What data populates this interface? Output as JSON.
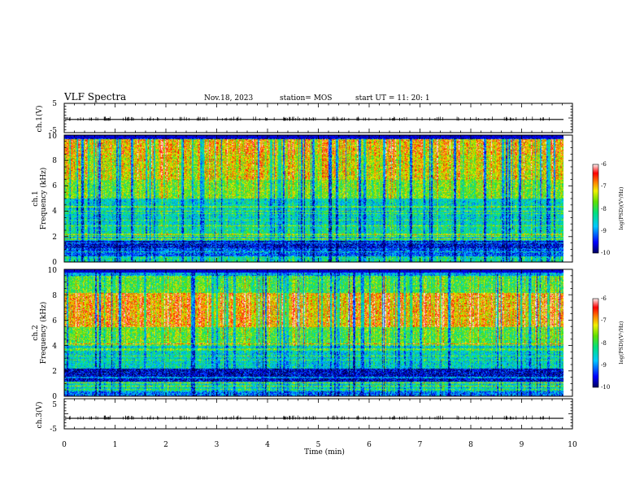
{
  "header": {
    "title": "VLF Spectra",
    "date": "Nov.18, 2023",
    "station": "station= MOS",
    "start": "start  UT =   11: 20: 1"
  },
  "chart_data": [
    {
      "type": "line",
      "name": "ch1-voltage",
      "ylabel": "ch.1(V)",
      "ylim": [
        -5,
        5
      ],
      "y_ticks": [
        "5",
        "-5"
      ],
      "xlim": [
        0,
        10
      ],
      "series": [
        {
          "name": "ch.1",
          "value": -0.5
        }
      ]
    },
    {
      "type": "heatmap",
      "name": "ch1-spectrogram",
      "ylabel_lines": [
        "ch.1",
        "Frequency (kHz)"
      ],
      "ylim": [
        0,
        10
      ],
      "y_ticks": [
        "0",
        "2",
        "4",
        "6",
        "8",
        "10"
      ],
      "xlim": [
        0,
        9.83
      ],
      "colorbar": {
        "label": "log(PSD)(V²/Hz)",
        "range": [
          -10,
          -6
        ],
        "ticks": [
          "-6",
          "-7",
          "-8",
          "-9",
          "-10"
        ]
      }
    },
    {
      "type": "heatmap",
      "name": "ch2-spectrogram",
      "ylabel_lines": [
        "ch.2",
        "Frequency (kHz)"
      ],
      "ylim": [
        0,
        10
      ],
      "y_ticks": [
        "0",
        "2",
        "4",
        "6",
        "8",
        "10"
      ],
      "xlim": [
        0,
        9.83
      ],
      "colorbar": {
        "label": "log(PSD)(V²/Hz)",
        "range": [
          -10,
          -6
        ],
        "ticks": [
          "-6",
          "-7",
          "-8",
          "-9",
          "-10"
        ]
      }
    },
    {
      "type": "line",
      "name": "ch3-voltage",
      "ylabel": "ch.3(V)",
      "ylim": [
        -5,
        5
      ],
      "y_ticks": [
        "5",
        "-5"
      ],
      "xlim": [
        0,
        10
      ],
      "series": [
        {
          "name": "ch.3",
          "value": -1.5
        }
      ]
    }
  ],
  "x_axis": {
    "label": "Time  (min)",
    "range": [
      0,
      10
    ],
    "ticks": [
      "0",
      "1",
      "2",
      "3",
      "4",
      "5",
      "6",
      "7",
      "8",
      "9",
      "10"
    ]
  }
}
